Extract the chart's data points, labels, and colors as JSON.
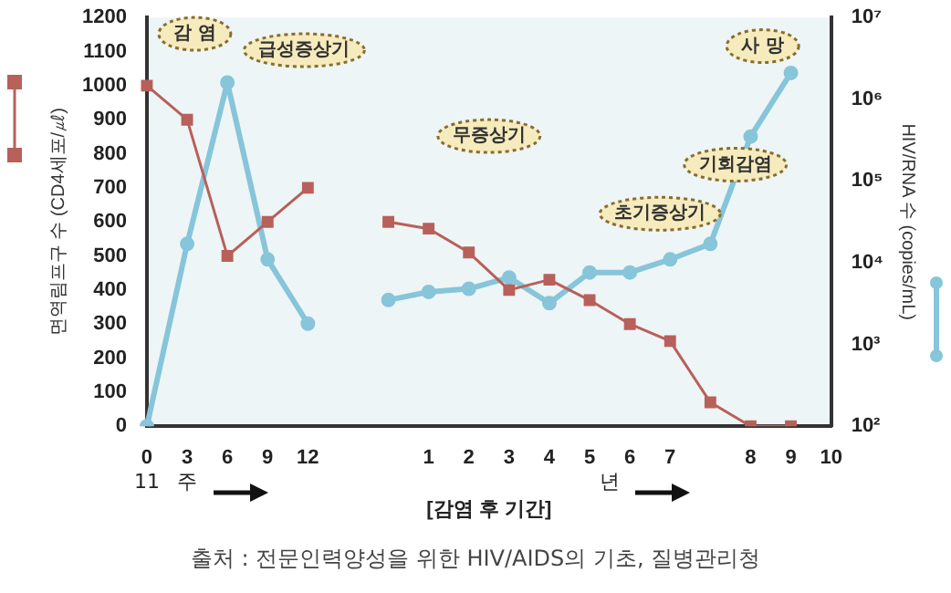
{
  "chart_data": {
    "type": "line",
    "xlabel": "[감염 후 기간]",
    "ylabel": "면역림프구 수 (CD4세포/㎕)",
    "y2label": "HIV/RNA 수 (copies/mL)",
    "categories": [
      "0",
      "3",
      "6",
      "9",
      "12",
      null,
      null,
      "1",
      "2",
      "3",
      "4",
      "5",
      "6",
      "7",
      null,
      "8",
      "9",
      "10"
    ],
    "series": [
      {
        "color": "#b8605a",
        "marker": "square",
        "values": [
          1000,
          900,
          500,
          600,
          700,
          null,
          600,
          580,
          510,
          400,
          430,
          370,
          300,
          250,
          70,
          0,
          0,
          null
        ]
      },
      {
        "color": "#86c5da",
        "marker": "circle",
        "axis": "y2",
        "values": [
          100,
          17000,
          1600000,
          11000,
          1800,
          null,
          3500,
          4400,
          4800,
          6600,
          3200,
          7600,
          7600,
          11000,
          17000,
          350000,
          2100000,
          null
        ]
      }
    ],
    "ylim": [
      0,
      1200
    ],
    "yticks": [
      0,
      100,
      200,
      300,
      400,
      500,
      600,
      700,
      800,
      900,
      1000,
      1100,
      1200
    ],
    "y2lim": [
      100,
      10000000
    ],
    "y2ticks": [
      {
        "value": 100,
        "label": "10²"
      },
      {
        "value": 1000,
        "label": "10³"
      },
      {
        "value": 10000,
        "label": "10⁴"
      },
      {
        "value": 100000,
        "label": "10⁵"
      },
      {
        "value": 1000000,
        "label": "10⁶"
      },
      {
        "value": 10000000,
        "label": "10⁷"
      }
    ],
    "log": "y2",
    "annotations": [
      "감 염",
      "급성증상기",
      "무증상기",
      "초기증상기",
      "기회감염",
      "사 망",
      "11",
      "주",
      "년",
      "출처 : 전문인력양성을 위한 HIV/AIDS의 기초, 질병관리청"
    ]
  }
}
